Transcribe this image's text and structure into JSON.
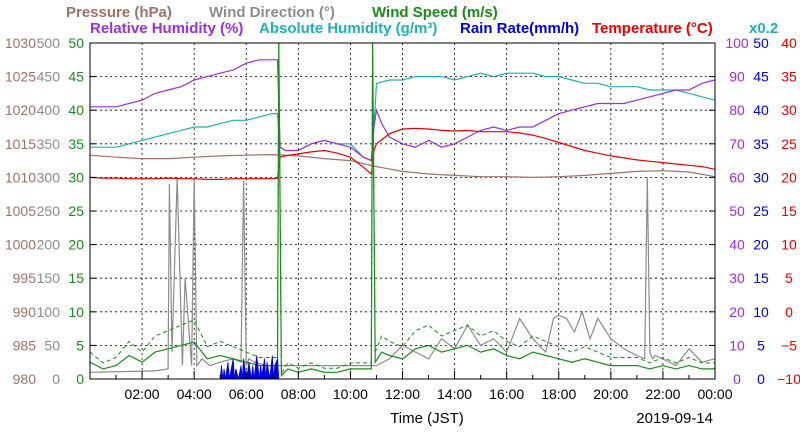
{
  "chart_data": {
    "type": "line",
    "legend": {
      "row1": [
        {
          "key": "pressure",
          "label": "Pressure (hPa)",
          "color": "#a0706a"
        },
        {
          "key": "wind_dir",
          "label": "Wind Direction (°)",
          "color": "#8c8c8c"
        },
        {
          "key": "wind_speed",
          "label": "Wind Speed (m/s)",
          "color": "#1a8c1a"
        }
      ],
      "row2": [
        {
          "key": "rh",
          "label": "Relative Humidity (%)",
          "color": "#9a30d8"
        },
        {
          "key": "ah",
          "label": "Absolute Humidity (g/m³)",
          "color": "#20b0b0"
        },
        {
          "key": "rain",
          "label": "Rain Rate(mm/h)",
          "color": "#0000e0"
        },
        {
          "key": "temp",
          "label": "Temperature (°C)",
          "color": "#ee0000"
        }
      ],
      "ah_scale_note": "x0.2"
    },
    "xlabel": "Time (JST)",
    "date": "2019-09-14",
    "xlim": [
      0,
      24
    ],
    "x_ticks": [
      2,
      4,
      6,
      8,
      10,
      12,
      14,
      16,
      18,
      20,
      22,
      24
    ],
    "x_tick_labels": [
      "02:00",
      "04:00",
      "06:00",
      "08:00",
      "10:00",
      "12:00",
      "14:00",
      "16:00",
      "18:00",
      "20:00",
      "22:00",
      "00:00"
    ],
    "axes": {
      "pressure": {
        "color": "#a0706a",
        "ticks": [
          "980",
          "985",
          "990",
          "995",
          "1000",
          "1005",
          "1010",
          "1015",
          "1020",
          "1025",
          "1030"
        ]
      },
      "wind_dir": {
        "color": "#8c8c8c",
        "ticks": [
          "0",
          "50",
          "100",
          "150",
          "200",
          "250",
          "300",
          "350",
          "400",
          "450",
          "500"
        ]
      },
      "wind_speed": {
        "color": "#1a8c1a",
        "ticks": [
          "0",
          "5",
          "10",
          "15",
          "20",
          "25",
          "30",
          "35",
          "40",
          "45",
          "50"
        ]
      },
      "rh": {
        "color": "#9a30d8",
        "ticks": [
          "0",
          "10",
          "20",
          "30",
          "40",
          "50",
          "60",
          "70",
          "80",
          "90",
          "100"
        ]
      },
      "rain": {
        "color": "#0000e0",
        "ticks": [
          "0",
          "5",
          "10",
          "15",
          "20",
          "25",
          "30",
          "35",
          "40",
          "45",
          "50"
        ]
      },
      "temp": {
        "color": "#ee0000",
        "ticks": [
          "−10",
          "−5",
          "0",
          "5",
          "10",
          "15",
          "20",
          "25",
          "30",
          "35",
          "40"
        ]
      }
    },
    "series": [
      {
        "name": "Pressure (hPa)",
        "key": "pressure",
        "color": "#a0706a",
        "range": [
          980,
          1030
        ],
        "x": [
          0,
          1,
          2,
          3,
          4,
          5,
          6,
          7,
          8,
          9,
          10,
          11,
          12,
          13,
          14,
          15,
          16,
          17,
          18,
          19,
          20,
          21,
          22,
          23,
          24
        ],
        "y": [
          1013.3,
          1013.0,
          1012.8,
          1012.8,
          1013.0,
          1013.2,
          1013.3,
          1013.4,
          1013.2,
          1012.8,
          1012.5,
          1011.6,
          1010.9,
          1010.5,
          1010.3,
          1010.1,
          1010.1,
          1010.0,
          1010.1,
          1010.3,
          1010.6,
          1010.9,
          1011.0,
          1010.8,
          1010.1
        ]
      },
      {
        "name": "Wind Direction (°)",
        "key": "wind_dir",
        "color": "#8c8c8c",
        "range": [
          0,
          500
        ],
        "x": [
          0,
          2.5,
          3.0,
          3.05,
          3.15,
          3.35,
          3.55,
          3.65,
          3.9,
          4.0,
          4.1,
          4.3,
          4.6,
          5.0,
          5.5,
          5.8,
          5.9,
          6.0,
          6.1,
          6.3,
          6.8,
          7.2,
          7.6,
          8.0,
          9.0,
          10.0,
          10.5,
          11.0,
          11.5,
          12.0,
          12.5,
          13.0,
          13.5,
          14.0,
          14.5,
          15.0,
          15.5,
          16.0,
          16.5,
          17.0,
          17.5,
          17.8,
          18.0,
          18.3,
          18.6,
          18.9,
          19.2,
          19.5,
          20.0,
          20.5,
          21.0,
          21.3,
          21.4,
          21.5,
          21.6,
          21.7,
          22.0,
          22.5,
          23.0,
          23.5,
          24.0
        ],
        "y": [
          10,
          12,
          15,
          290,
          40,
          300,
          20,
          150,
          20,
          300,
          20,
          30,
          20,
          25,
          30,
          25,
          295,
          20,
          30,
          25,
          20,
          20,
          20,
          20,
          20,
          20,
          20,
          20,
          30,
          50,
          40,
          30,
          60,
          45,
          80,
          50,
          60,
          40,
          90,
          60,
          40,
          90,
          95,
          90,
          70,
          100,
          60,
          90,
          60,
          45,
          35,
          30,
          300,
          40,
          30,
          35,
          30,
          20,
          45,
          25,
          30
        ]
      },
      {
        "name": "Wind Speed (m/s)",
        "key": "wind_speed",
        "color": "#1a8c1a",
        "range": [
          0,
          50
        ],
        "x": [
          0,
          0.5,
          1.0,
          1.5,
          2.0,
          2.5,
          3.0,
          3.5,
          4.0,
          4.5,
          5.0,
          5.5,
          6.0,
          6.5,
          7.0,
          7.2,
          7.25,
          7.35,
          7.6,
          8.0,
          8.5,
          9.0,
          9.5,
          10.0,
          10.5,
          10.8,
          10.85,
          10.95,
          11.2,
          11.5,
          12.0,
          12.5,
          13.0,
          13.5,
          14.0,
          14.5,
          15.0,
          15.5,
          16.0,
          16.5,
          17.0,
          17.5,
          18.0,
          18.5,
          19.0,
          19.5,
          20.0,
          20.5,
          21.0,
          21.5,
          22.0,
          22.5,
          23.0,
          23.5,
          24.0
        ],
        "y": [
          2.5,
          1.5,
          2.0,
          3.5,
          2.5,
          4.0,
          4.5,
          5.0,
          5.5,
          3.0,
          3.5,
          3.0,
          2.5,
          2.0,
          2.0,
          2.0,
          50,
          0.5,
          1.5,
          1.0,
          1.5,
          1.0,
          1.0,
          1.5,
          1.5,
          1.5,
          50,
          2.5,
          4.0,
          3.5,
          3.0,
          4.5,
          5.0,
          4.0,
          4.5,
          5.0,
          4.0,
          4.5,
          3.5,
          3.0,
          4.0,
          3.5,
          3.0,
          2.5,
          3.0,
          2.5,
          2.0,
          2.0,
          2.0,
          1.5,
          2.0,
          1.5,
          2.0,
          1.5,
          1.5
        ]
      },
      {
        "name": "Relative Humidity (%)",
        "key": "rh",
        "color": "#9a30d8",
        "range": [
          0,
          100
        ],
        "x": [
          0,
          0.5,
          1.0,
          1.5,
          2.0,
          2.5,
          3.0,
          3.5,
          4.0,
          4.5,
          5.0,
          5.5,
          6.0,
          6.5,
          7.0,
          7.2,
          7.3,
          7.5,
          8.0,
          8.5,
          9.0,
          9.5,
          10.0,
          10.5,
          10.8,
          10.9,
          11.0,
          11.2,
          11.5,
          12.0,
          12.5,
          13.0,
          13.5,
          14.0,
          14.5,
          15.0,
          15.5,
          16.0,
          16.5,
          17.0,
          17.5,
          18.0,
          18.5,
          19.0,
          19.5,
          20.0,
          20.5,
          21.0,
          21.5,
          22.0,
          22.5,
          23.0,
          23.5,
          24.0
        ],
        "y": [
          81,
          81,
          81,
          82,
          83,
          85,
          86,
          87,
          89,
          90,
          91,
          92,
          94,
          95,
          95,
          95,
          69,
          68,
          68,
          70,
          71,
          70,
          69,
          66,
          65,
          75,
          80,
          76,
          72,
          70,
          69,
          71,
          69,
          70,
          72,
          74,
          75,
          74,
          75,
          75,
          77,
          79,
          80,
          81,
          82,
          82,
          82,
          83,
          84,
          85,
          86,
          86,
          88,
          89
        ]
      },
      {
        "name": "Absolute Humidity (g/m³)",
        "key": "ah",
        "color": "#20b0b0",
        "range": [
          0,
          100
        ],
        "x": [
          0,
          0.5,
          1.0,
          1.5,
          2.0,
          2.5,
          3.0,
          3.5,
          4.0,
          4.5,
          5.0,
          5.5,
          6.0,
          6.5,
          7.0,
          7.2,
          7.3,
          7.5,
          8.0,
          8.5,
          9.0,
          9.5,
          10.0,
          10.5,
          10.8,
          10.9,
          11.0,
          11.5,
          12.0,
          12.5,
          13.0,
          13.5,
          14.0,
          14.5,
          15.0,
          15.5,
          16.0,
          16.5,
          17.0,
          17.5,
          18.0,
          18.5,
          19.0,
          19.5,
          20.0,
          20.5,
          21.0,
          21.5,
          22.0,
          22.5,
          23.0,
          23.5,
          24.0
        ],
        "y": [
          69,
          69,
          69,
          70,
          71,
          72,
          73,
          74,
          75,
          75,
          76,
          77,
          77,
          78,
          79,
          79,
          69,
          68,
          68,
          70,
          71,
          70,
          70,
          66,
          65,
          75,
          88,
          89,
          89,
          90,
          90,
          90,
          89,
          90,
          91,
          90,
          91,
          91,
          91,
          90,
          90,
          89,
          88,
          88,
          87,
          87,
          87,
          86,
          86,
          86,
          85,
          84,
          83
        ]
      },
      {
        "name": "Rain Rate(mm/h)",
        "key": "rain",
        "color": "#0000e0",
        "range": [
          0,
          50
        ],
        "x": [
          0,
          5.0,
          5.05,
          5.1,
          5.15,
          5.2,
          5.3,
          5.35,
          5.4,
          5.5,
          5.55,
          5.6,
          5.7,
          5.8,
          5.85,
          5.9,
          6.0,
          6.05,
          6.1,
          6.2,
          6.25,
          6.3,
          6.4,
          6.5,
          6.55,
          6.6,
          6.7,
          6.75,
          6.8,
          6.9,
          7.0,
          7.05,
          7.1,
          7.2,
          7.25,
          24
        ],
        "y": [
          0,
          0,
          2,
          0,
          1.5,
          0,
          2.5,
          0,
          1,
          3,
          0,
          1.5,
          0,
          2,
          0,
          3,
          0,
          1,
          2.5,
          0,
          2,
          0,
          3.5,
          0,
          2,
          0.5,
          3,
          0,
          2.5,
          0,
          3.5,
          0,
          2,
          3,
          0,
          0
        ]
      },
      {
        "name": "Temperature (°C)",
        "key": "temp",
        "color": "#ee0000",
        "range": [
          -10,
          40
        ],
        "x": [
          0,
          0.5,
          1.0,
          1.5,
          2.0,
          2.5,
          3.0,
          3.5,
          4.0,
          4.5,
          5.0,
          5.5,
          6.0,
          6.5,
          7.0,
          7.2,
          7.3,
          7.5,
          8.0,
          8.5,
          9.0,
          9.5,
          10.0,
          10.5,
          10.8,
          10.9,
          11.0,
          11.5,
          12.0,
          12.5,
          13.0,
          13.5,
          14.0,
          14.5,
          15.0,
          15.5,
          16.0,
          16.5,
          17.0,
          17.5,
          18.0,
          18.5,
          19.0,
          19.5,
          20.0,
          20.5,
          21.0,
          21.5,
          22.0,
          22.5,
          23.0,
          23.5,
          24.0
        ],
        "y": [
          20.0,
          19.9,
          19.9,
          19.8,
          19.8,
          19.8,
          19.9,
          19.8,
          19.8,
          19.7,
          19.7,
          19.8,
          19.8,
          19.8,
          19.8,
          19.9,
          23.0,
          23.2,
          23.5,
          23.8,
          24.0,
          23.6,
          23.0,
          21.5,
          20.5,
          24.0,
          25.0,
          26.5,
          27.2,
          27.3,
          27.2,
          27.0,
          26.9,
          27.0,
          26.8,
          26.8,
          26.8,
          26.6,
          26.3,
          25.8,
          25.2,
          24.6,
          24.0,
          23.6,
          23.2,
          22.9,
          22.6,
          22.4,
          22.2,
          22.0,
          21.8,
          21.6,
          21.2
        ]
      }
    ]
  }
}
